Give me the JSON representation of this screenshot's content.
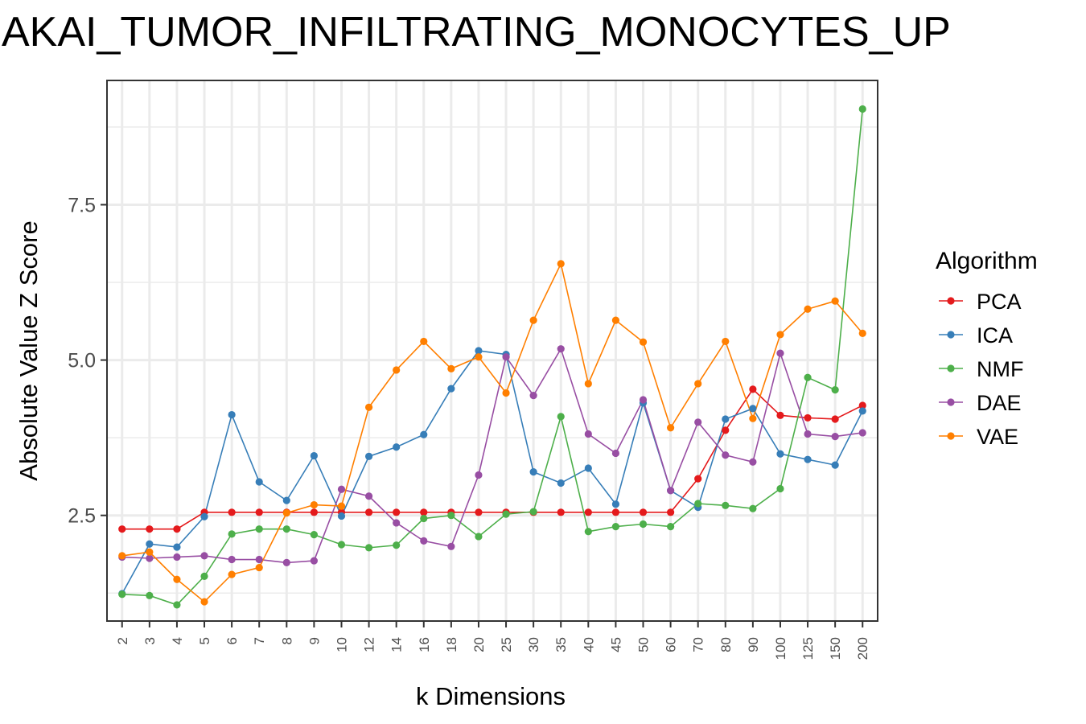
{
  "chart_data": {
    "type": "line",
    "title": "AKAI_TUMOR_INFILTRATING_MONOCYTES_UP",
    "xlabel": "k Dimensions",
    "ylabel": "Absolute Value Z Score",
    "categories": [
      "2",
      "3",
      "4",
      "5",
      "6",
      "7",
      "8",
      "9",
      "10",
      "12",
      "14",
      "16",
      "18",
      "20",
      "25",
      "30",
      "35",
      "40",
      "45",
      "50",
      "60",
      "70",
      "80",
      "90",
      "100",
      "125",
      "150",
      "200"
    ],
    "yticks": [
      "2.5",
      "5.0",
      "7.5"
    ],
    "ylim": [
      0.8,
      9.5
    ],
    "grid": true,
    "legend_title": "Algorithm",
    "legend_position": "right",
    "series": [
      {
        "name": "PCA",
        "color": "#e41a1c",
        "values": [
          2.28,
          2.28,
          2.28,
          2.55,
          2.55,
          2.55,
          2.55,
          2.55,
          2.55,
          2.55,
          2.55,
          2.55,
          2.55,
          2.55,
          2.55,
          2.55,
          2.55,
          2.55,
          2.55,
          2.55,
          2.55,
          3.09,
          3.87,
          4.53,
          4.11,
          4.07,
          4.05,
          4.27
        ]
      },
      {
        "name": "ICA",
        "color": "#377eb8",
        "values": [
          1.24,
          2.04,
          1.99,
          2.48,
          4.12,
          3.04,
          2.74,
          3.46,
          2.49,
          3.45,
          3.6,
          3.8,
          4.54,
          5.15,
          5.09,
          3.2,
          3.02,
          3.26,
          2.68,
          4.31,
          2.9,
          2.63,
          4.05,
          4.22,
          3.49,
          3.4,
          3.31,
          4.18
        ]
      },
      {
        "name": "NMF",
        "color": "#4daf4a",
        "values": [
          1.23,
          1.21,
          1.06,
          1.52,
          2.2,
          2.28,
          2.28,
          2.19,
          2.03,
          1.98,
          2.02,
          2.45,
          2.5,
          2.16,
          2.52,
          2.56,
          4.09,
          2.24,
          2.32,
          2.36,
          2.32,
          2.69,
          2.66,
          2.61,
          2.93,
          4.72,
          4.52,
          9.04
        ]
      },
      {
        "name": "DAE",
        "color": "#984ea3",
        "values": [
          1.83,
          1.81,
          1.83,
          1.85,
          1.79,
          1.79,
          1.74,
          1.77,
          2.92,
          2.81,
          2.38,
          2.09,
          2.0,
          3.15,
          5.05,
          4.43,
          5.18,
          3.81,
          3.5,
          4.36,
          2.9,
          4.0,
          3.47,
          3.36,
          5.11,
          3.81,
          3.77,
          3.83
        ]
      },
      {
        "name": "VAE",
        "color": "#ff7f00",
        "values": [
          1.85,
          1.91,
          1.47,
          1.11,
          1.55,
          1.66,
          2.54,
          2.67,
          2.65,
          4.24,
          4.84,
          5.3,
          4.86,
          5.05,
          4.47,
          5.64,
          6.55,
          4.62,
          5.64,
          5.29,
          3.91,
          4.62,
          5.3,
          4.06,
          5.41,
          5.82,
          5.95,
          5.43
        ]
      }
    ]
  }
}
